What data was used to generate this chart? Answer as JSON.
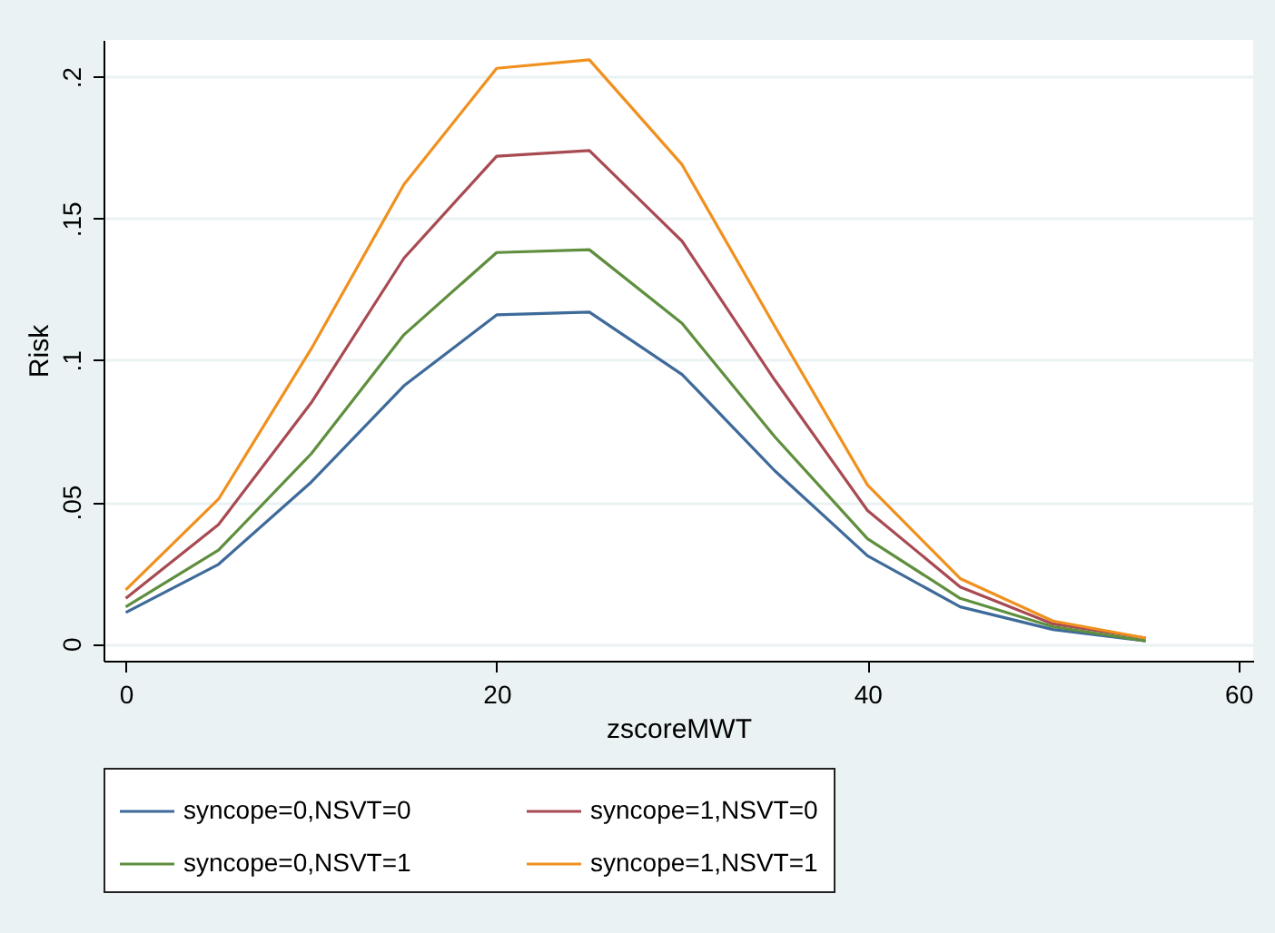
{
  "chart_data": {
    "type": "line",
    "xlabel": "zscoreMWT",
    "ylabel": "Risk",
    "x": [
      0,
      5,
      10,
      15,
      20,
      25,
      30,
      35,
      40,
      45,
      50,
      55
    ],
    "series": [
      {
        "name": "syncope=0,NSVT=0",
        "color": "#3e6a9a",
        "values": [
          0.011,
          0.028,
          0.057,
          0.091,
          0.116,
          0.117,
          0.095,
          0.061,
          0.031,
          0.013,
          0.005,
          0.001
        ]
      },
      {
        "name": "syncope=1,NSVT=0",
        "color": "#a84a52",
        "values": [
          0.016,
          0.042,
          0.085,
          0.136,
          0.172,
          0.174,
          0.142,
          0.093,
          0.047,
          0.02,
          0.007,
          0.002
        ]
      },
      {
        "name": "syncope=0,NSVT=1",
        "color": "#5f8f3e",
        "values": [
          0.013,
          0.033,
          0.067,
          0.109,
          0.138,
          0.139,
          0.113,
          0.073,
          0.037,
          0.016,
          0.006,
          0.001
        ]
      },
      {
        "name": "syncope=1,NSVT=1",
        "color": "#f0901e",
        "values": [
          0.019,
          0.051,
          0.104,
          0.162,
          0.203,
          0.206,
          0.169,
          0.112,
          0.056,
          0.023,
          0.008,
          0.002
        ]
      }
    ],
    "xlim": [
      -1.2,
      60.8
    ],
    "xticks": [
      0,
      20,
      40,
      60
    ],
    "ylim": [
      -0.006,
      0.213
    ],
    "yticks": [
      {
        "value": 0,
        "label": "0"
      },
      {
        "value": 0.05,
        "label": ".05"
      },
      {
        "value": 0.1,
        "label": ".1"
      },
      {
        "value": 0.15,
        "label": ".15"
      },
      {
        "value": 0.2,
        "label": ".2"
      }
    ],
    "grid": "y",
    "legend": "bottom",
    "marker": "none",
    "line_style": "solid"
  }
}
